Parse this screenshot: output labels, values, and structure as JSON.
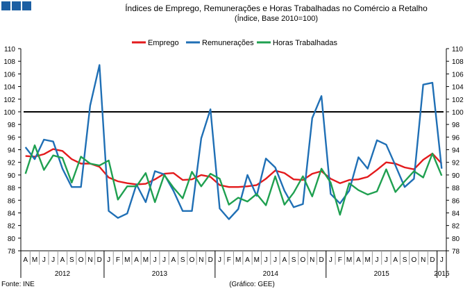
{
  "header": {
    "title": "Índices de Emprego, Remunerações e Horas Trabalhadas no Comércio a Retalho",
    "subtitle": "(Índice, Base 2010=100)"
  },
  "footer": {
    "source": "Fonte: INE",
    "credit": "(Gráfico: GEE)"
  },
  "chart_data": {
    "type": "line",
    "title": "Índices de Emprego, Remunerações e Horas Trabalhadas no Comércio a Retalho",
    "subtitle": "(Índice, Base 2010=100)",
    "ylim": [
      78,
      110
    ],
    "yticks": [
      78,
      80,
      82,
      84,
      86,
      88,
      90,
      92,
      94,
      96,
      98,
      100,
      102,
      104,
      106,
      108,
      110
    ],
    "reference_line": 100,
    "legend_position": "top-center",
    "months": [
      "A",
      "M",
      "J",
      "J",
      "A",
      "S",
      "O",
      "N",
      "D",
      "J",
      "F",
      "M",
      "A",
      "M",
      "J",
      "J",
      "A",
      "S",
      "O",
      "N",
      "D",
      "J",
      "F",
      "M",
      "A",
      "M",
      "J",
      "J",
      "A",
      "S",
      "O",
      "N",
      "D",
      "J",
      "F",
      "M",
      "A",
      "M",
      "J",
      "J",
      "A",
      "S",
      "O",
      "N",
      "D",
      "J"
    ],
    "years": [
      {
        "label": "2012",
        "start": 0,
        "count": 9
      },
      {
        "label": "2013",
        "start": 9,
        "count": 12
      },
      {
        "label": "2014",
        "start": 21,
        "count": 12
      },
      {
        "label": "2015",
        "start": 33,
        "count": 12
      },
      {
        "label": "2016",
        "start": 45,
        "count": 1
      }
    ],
    "series": [
      {
        "name": "Emprego",
        "color": "#e31a1c",
        "values": [
          93.0,
          92.9,
          93.3,
          94.1,
          93.8,
          92.5,
          91.8,
          91.8,
          91.3,
          89.6,
          89.0,
          88.7,
          88.5,
          88.6,
          89.3,
          90.2,
          90.3,
          89.2,
          89.3,
          90.0,
          89.7,
          88.4,
          88.1,
          88.1,
          88.2,
          88.4,
          89.4,
          90.7,
          90.3,
          89.3,
          89.2,
          90.2,
          90.6,
          89.4,
          88.7,
          89.2,
          89.3,
          89.7,
          90.8,
          92.0,
          91.8,
          91.2,
          90.9,
          92.4,
          93.4,
          91.8
        ]
      },
      {
        "name": "Remunerações",
        "color": "#1f6fb5",
        "values": [
          94.4,
          92.5,
          95.6,
          95.3,
          91.0,
          88.1,
          88.1,
          101.0,
          107.4,
          84.3,
          83.2,
          83.9,
          88.5,
          85.7,
          90.6,
          90.1,
          87.5,
          84.3,
          84.3,
          95.8,
          100.4,
          84.7,
          83.0,
          84.6,
          90.0,
          86.7,
          92.6,
          91.2,
          87.5,
          84.9,
          85.4,
          99.0,
          102.5,
          87.0,
          85.5,
          87.5,
          92.8,
          91.0,
          95.5,
          94.8,
          91.5,
          88.1,
          89.4,
          104.3,
          104.6,
          91.0
        ]
      },
      {
        "name": "Horas Trabalhadas",
        "color": "#1fa050",
        "values": [
          90.2,
          94.7,
          90.8,
          93.1,
          92.7,
          88.8,
          92.9,
          91.8,
          91.5,
          92.3,
          86.1,
          88.2,
          88.2,
          90.3,
          85.7,
          90.0,
          88.0,
          86.3,
          90.5,
          88.2,
          90.2,
          89.4,
          85.3,
          86.4,
          85.8,
          87.0,
          85.2,
          89.8,
          85.3,
          87.2,
          89.8,
          86.6,
          91.0,
          88.8,
          83.7,
          88.7,
          87.6,
          86.9,
          87.4,
          90.9,
          87.3,
          89.0,
          90.6,
          89.6,
          93.4,
          89.9
        ]
      }
    ]
  },
  "logo_color": "#1c5fa3"
}
